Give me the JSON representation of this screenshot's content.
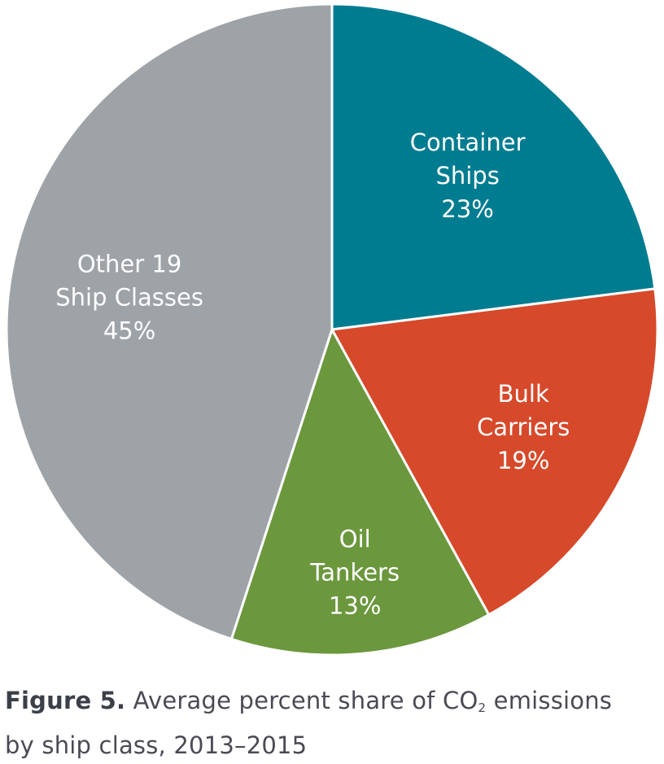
{
  "chart_data": {
    "type": "pie",
    "slices": [
      {
        "name": "Container Ships",
        "label_lines": [
          "Container",
          "Ships"
        ],
        "value": 23,
        "value_label": "23%",
        "color": "#007c91"
      },
      {
        "name": "Bulk Carriers",
        "label_lines": [
          "Bulk",
          "Carriers"
        ],
        "value": 19,
        "value_label": "19%",
        "color": "#d6492a"
      },
      {
        "name": "Oil Tankers",
        "label_lines": [
          "Oil",
          "Tankers"
        ],
        "value": 13,
        "value_label": "13%",
        "color": "#6b973d"
      },
      {
        "name": "Other 19 Ship Classes",
        "label_lines": [
          "Other 19",
          "Ship Classes"
        ],
        "value": 45,
        "value_label": "45%",
        "color": "#9ea3a8"
      }
    ],
    "start_angle_deg": 0,
    "direction": "clockwise",
    "legend": "none"
  },
  "caption": {
    "figure_label": "Figure 5.",
    "text_before_sub": " Average percent share of CO",
    "subscript": "2",
    "text_after_sub": " emissions by ship class, 2013–2015"
  }
}
